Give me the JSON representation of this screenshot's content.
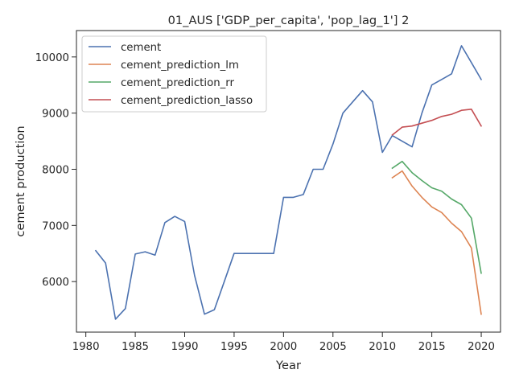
{
  "chart_data": {
    "type": "line",
    "title": "01_AUS ['GDP_per_capita', 'pop_lag_1'] 2",
    "xlabel": "Year",
    "ylabel": "cement production",
    "xlim": [
      1979.05,
      2021.95
    ],
    "ylim": [
      5100,
      10470
    ],
    "xticks": [
      1980,
      1985,
      1990,
      1995,
      2000,
      2005,
      2010,
      2015,
      2020
    ],
    "yticks": [
      6000,
      7000,
      8000,
      9000,
      10000
    ],
    "grid": false,
    "legend_position": "top-left",
    "series": [
      {
        "name": "cement",
        "color": "#4c72b0",
        "x": [
          1981,
          1982,
          1983,
          1984,
          1985,
          1986,
          1987,
          1988,
          1989,
          1990,
          1991,
          1992,
          1993,
          1994,
          1995,
          1996,
          1997,
          1998,
          1999,
          2000,
          2001,
          2002,
          2003,
          2004,
          2005,
          2006,
          2007,
          2008,
          2009,
          2010,
          2011,
          2012,
          2013,
          2014,
          2015,
          2016,
          2017,
          2018,
          2019,
          2020
        ],
        "y": [
          6550,
          6330,
          5330,
          5520,
          6490,
          6530,
          6470,
          7050,
          7160,
          7070,
          6110,
          5420,
          5500,
          6000,
          6500,
          6500,
          6500,
          6500,
          6500,
          7500,
          7500,
          7550,
          8000,
          8000,
          8450,
          9000,
          9200,
          9400,
          9200,
          8300,
          8600,
          8500,
          8400,
          9000,
          9500,
          9600,
          9700,
          10200,
          9900,
          9600
        ]
      },
      {
        "name": "cement_prediction_lm",
        "color": "#dd8452",
        "x": [
          2011,
          2012,
          2013,
          2014,
          2015,
          2016,
          2017,
          2018,
          2019,
          2020
        ],
        "y": [
          7850,
          7970,
          7700,
          7500,
          7330,
          7230,
          7040,
          6890,
          6600,
          5420
        ]
      },
      {
        "name": "cement_prediction_rr",
        "color": "#55a868",
        "x": [
          2011,
          2012,
          2013,
          2014,
          2015,
          2016,
          2017,
          2018,
          2019,
          2020
        ],
        "y": [
          8020,
          8140,
          7940,
          7800,
          7670,
          7610,
          7470,
          7370,
          7130,
          6150
        ]
      },
      {
        "name": "cement_prediction_lasso",
        "color": "#c44e52",
        "x": [
          2011,
          2012,
          2013,
          2014,
          2015,
          2016,
          2017,
          2018,
          2019,
          2020
        ],
        "y": [
          8610,
          8750,
          8770,
          8820,
          8870,
          8940,
          8980,
          9050,
          9070,
          8770
        ]
      }
    ]
  }
}
